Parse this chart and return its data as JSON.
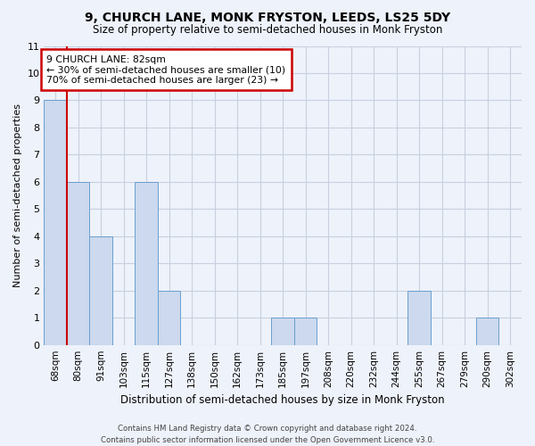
{
  "title": "9, CHURCH LANE, MONK FRYSTON, LEEDS, LS25 5DY",
  "subtitle": "Size of property relative to semi-detached houses in Monk Fryston",
  "xlabel": "Distribution of semi-detached houses by size in Monk Fryston",
  "ylabel": "Number of semi-detached properties",
  "footer1": "Contains HM Land Registry data © Crown copyright and database right 2024.",
  "footer2": "Contains public sector information licensed under the Open Government Licence v3.0.",
  "annotation_title": "9 CHURCH LANE: 82sqm",
  "annotation_line1": "← 30% of semi-detached houses are smaller (10)",
  "annotation_line2": "70% of semi-detached houses are larger (23) →",
  "categories": [
    "68sqm",
    "80sqm",
    "91sqm",
    "103sqm",
    "115sqm",
    "127sqm",
    "138sqm",
    "150sqm",
    "162sqm",
    "173sqm",
    "185sqm",
    "197sqm",
    "208sqm",
    "220sqm",
    "232sqm",
    "244sqm",
    "255sqm",
    "267sqm",
    "279sqm",
    "290sqm",
    "302sqm"
  ],
  "values": [
    9,
    6,
    4,
    0,
    6,
    2,
    0,
    0,
    0,
    0,
    1,
    1,
    0,
    0,
    0,
    0,
    2,
    0,
    0,
    1,
    0
  ],
  "bar_color": "#ccd9ee",
  "bar_edge_color": "#6a9fd0",
  "highlight_line_color": "#cc0000",
  "highlight_bin": 1,
  "ylim": [
    0,
    11
  ],
  "yticks": [
    0,
    1,
    2,
    3,
    4,
    5,
    6,
    7,
    8,
    9,
    10,
    11
  ],
  "annotation_box_color": "#ffffff",
  "annotation_box_edge": "#cc0000",
  "bg_color": "#eef2fa",
  "grid_color": "#c8d0e0"
}
